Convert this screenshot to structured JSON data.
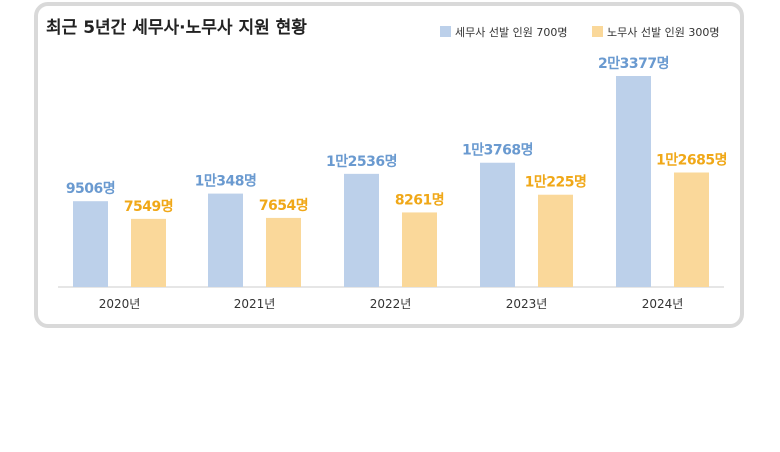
{
  "chart_data": {
    "type": "bar",
    "title": "최근 5년간 세무사·노무사 지원 현황",
    "categories": [
      "2020년",
      "2021년",
      "2022년",
      "2023년",
      "2024년"
    ],
    "series": [
      {
        "name": "세무사 선발 인원 700명",
        "color": "#bcd0ea",
        "label_color": "#6a9ad0",
        "values": [
          9506,
          10348,
          12536,
          13768,
          23377
        ],
        "labels": [
          "9506명",
          "1만348명",
          "1만2536명",
          "1만3768명",
          "2만3377명"
        ]
      },
      {
        "name": "노무사 선발 인원 300명",
        "color": "#fad89a",
        "label_color": "#f0a818",
        "values": [
          7549,
          7654,
          8261,
          10225,
          12685
        ],
        "labels": [
          "7549명",
          "7654명",
          "8261명",
          "1만225명",
          "1만2685명"
        ]
      }
    ],
    "ylim": [
      0,
      23377
    ],
    "grid": false,
    "legend_position": "top-right"
  }
}
